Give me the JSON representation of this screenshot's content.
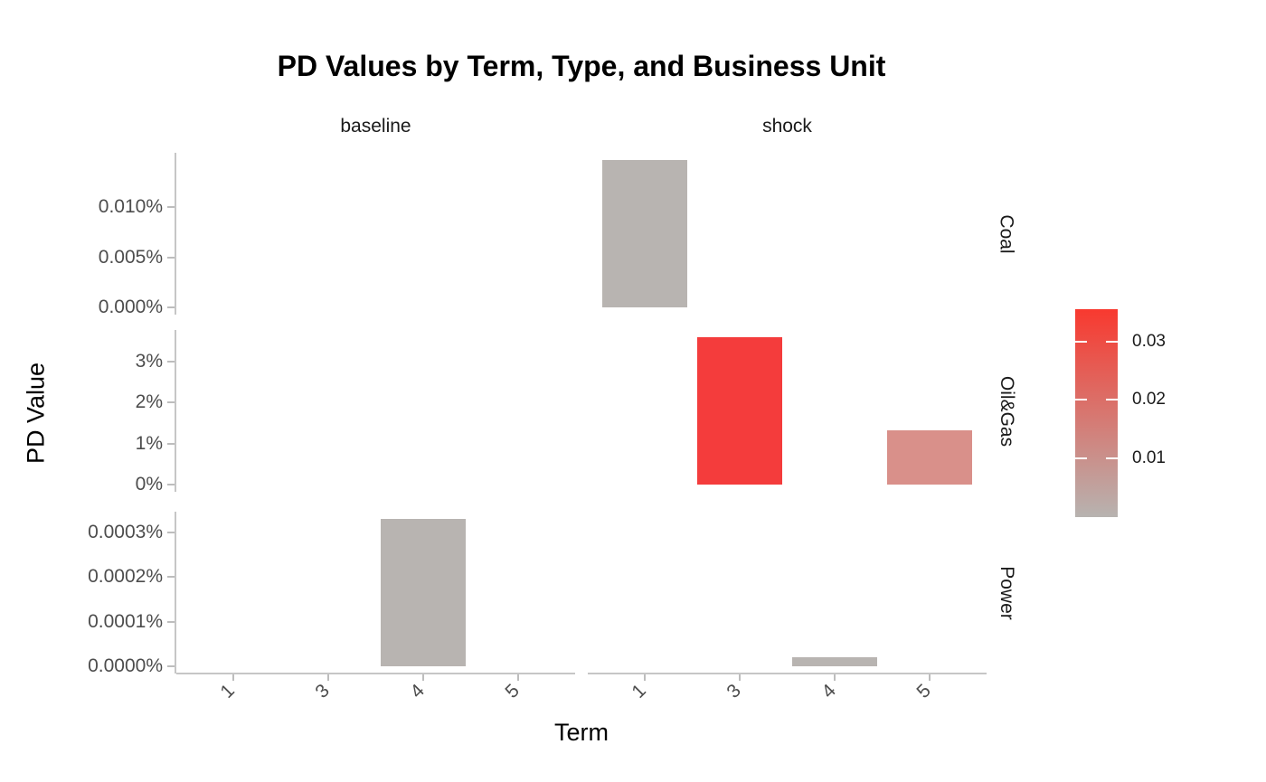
{
  "title": "PD Values by Term, Type, and Business Unit",
  "axes": {
    "x_title": "Term",
    "y_title": "PD Value"
  },
  "facets": {
    "columns": [
      "baseline",
      "shock"
    ],
    "rows": [
      "Coal",
      "Oil&Gas",
      "Power"
    ]
  },
  "colors": {
    "bar_low": "#b8b4b1",
    "bar_high": "#f43c3c",
    "bar_mid": "#d9908a",
    "axis_line": "#c6c6c6",
    "tick_mark": "#bdbdbd",
    "tick_label": "#4d4d4d",
    "strip_text": "#1a1a1a"
  },
  "chart_data": {
    "type": "bar",
    "x_categories": [
      "1",
      "3",
      "4",
      "5"
    ],
    "col_facets": [
      "baseline",
      "shock"
    ],
    "grid": "off",
    "legend_position": "right",
    "row_facets": [
      {
        "label": "Coal",
        "axis_ticks": [
          {
            "label": "0.010%",
            "value": 0.0001
          },
          {
            "label": "0.005%",
            "value": 5e-05
          },
          {
            "label": "0.000%",
            "value": 0
          }
        ],
        "max_value": 0.000147,
        "bars": [
          {
            "facet": "shock",
            "term": "1",
            "value": 0.000147,
            "value_label": "0.0147%",
            "color": "#b8b4b1"
          }
        ]
      },
      {
        "label": "Oil&Gas",
        "axis_ticks": [
          {
            "label": "3%",
            "value": 0.03
          },
          {
            "label": "2%",
            "value": 0.02
          },
          {
            "label": "1%",
            "value": 0.01
          },
          {
            "label": "0%",
            "value": 0
          }
        ],
        "max_value": 0.036,
        "bars": [
          {
            "facet": "shock",
            "term": "3",
            "value": 0.036,
            "value_label": "3.6%",
            "color": "#f43c3c"
          },
          {
            "facet": "shock",
            "term": "5",
            "value": 0.0133,
            "value_label": "1.33%",
            "color": "#d9908a"
          }
        ]
      },
      {
        "label": "Power",
        "axis_ticks": [
          {
            "label": "0.0003%",
            "value": 3e-06
          },
          {
            "label": "0.0002%",
            "value": 2e-06
          },
          {
            "label": "0.0001%",
            "value": 1e-06
          },
          {
            "label": "0.0000%",
            "value": 0
          }
        ],
        "max_value": 3.3e-06,
        "bars": [
          {
            "facet": "baseline",
            "term": "4",
            "value": 3.3e-06,
            "value_label": "0.00033%",
            "color": "#b8b4b1"
          },
          {
            "facet": "shock",
            "term": "4",
            "value": 2e-07,
            "value_label": "0.00002%",
            "color": "#b8b4b1"
          }
        ]
      }
    ],
    "legend": {
      "domain": [
        0,
        0.0355
      ],
      "low_color": "#b7b3b0",
      "high_color": "#f8392f",
      "ticks": [
        {
          "label": "0.03",
          "value": 0.03
        },
        {
          "label": "0.02",
          "value": 0.02
        },
        {
          "label": "0.01",
          "value": 0.01
        }
      ]
    }
  }
}
